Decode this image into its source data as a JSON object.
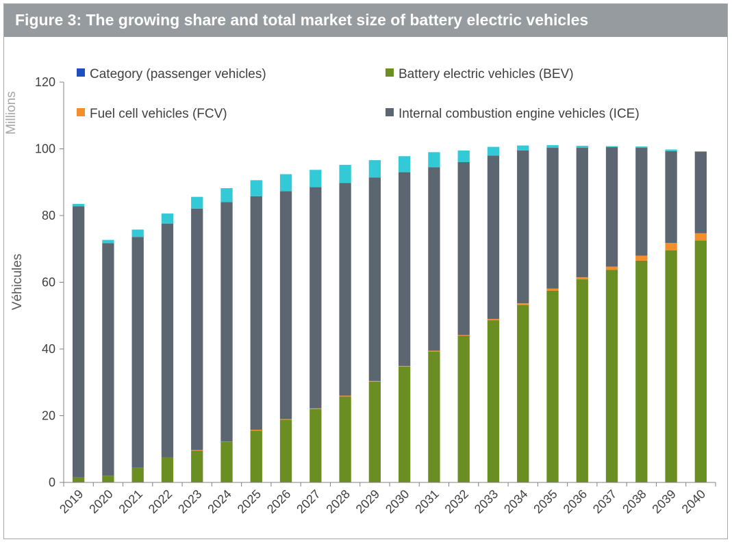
{
  "figure": {
    "title": "Figure 3: The growing share and total market size of battery electric vehicles"
  },
  "chart_data": {
    "type": "bar",
    "stacked": true,
    "title": "Figure 3: The growing share and total market size of battery electric vehicles",
    "xlabel": "",
    "ylabel": "Véhicules",
    "units": "Millions",
    "ylim": [
      0,
      120
    ],
    "yticks": [
      0,
      20,
      40,
      60,
      80,
      100,
      120
    ],
    "grid": false,
    "legend_position": "top",
    "categories": [
      "2019",
      "2020",
      "2021",
      "2022",
      "2023",
      "2024",
      "2025",
      "2026",
      "2027",
      "2028",
      "2029",
      "2030",
      "2031",
      "2032",
      "2033",
      "2034",
      "2035",
      "2036",
      "2037",
      "2038",
      "2039",
      "2040"
    ],
    "legend": [
      {
        "name": "Category (passenger vehicles)",
        "color": "#1f4fbf"
      },
      {
        "name": "Battery electric vehicles (BEV)",
        "color": "#6b8e23"
      },
      {
        "name": "Fuel cell vehicles (FCV)",
        "color": "#f28e2b"
      },
      {
        "name": "Internal combustion engine vehicles (ICE)",
        "color": "#5b6670"
      }
    ],
    "series": [
      {
        "key": "bev",
        "color": "#6b8e23",
        "values": [
          1.5,
          2.0,
          4.5,
          7.5,
          9.5,
          12.2,
          15.5,
          18.8,
          22.0,
          25.8,
          30.2,
          34.7,
          39.2,
          43.9,
          48.6,
          53.2,
          57.5,
          60.9,
          63.7,
          66.5,
          69.6,
          72.5
        ]
      },
      {
        "key": "fcv",
        "color": "#f28e2b",
        "values": [
          0.0,
          0.0,
          0.0,
          0.0,
          0.2,
          0.1,
          0.3,
          0.2,
          0.2,
          0.2,
          0.2,
          0.2,
          0.3,
          0.3,
          0.4,
          0.5,
          0.6,
          0.6,
          1.0,
          1.5,
          2.2,
          2.2
        ]
      },
      {
        "key": "ice",
        "color": "#5b6670",
        "values": [
          81.3,
          69.7,
          69.1,
          70.1,
          72.4,
          71.7,
          70.0,
          68.3,
          66.3,
          63.8,
          61.0,
          58.1,
          55.0,
          51.8,
          49.0,
          45.8,
          42.2,
          38.8,
          35.8,
          32.3,
          27.5,
          24.5
        ]
      },
      {
        "key": "other",
        "color": "#33c9d6",
        "values": [
          0.7,
          1.0,
          2.2,
          3.0,
          3.5,
          4.2,
          4.8,
          5.1,
          5.2,
          5.4,
          5.2,
          4.8,
          4.5,
          3.5,
          2.6,
          1.5,
          0.8,
          0.6,
          0.3,
          0.4,
          0.5,
          0.0
        ]
      }
    ]
  }
}
